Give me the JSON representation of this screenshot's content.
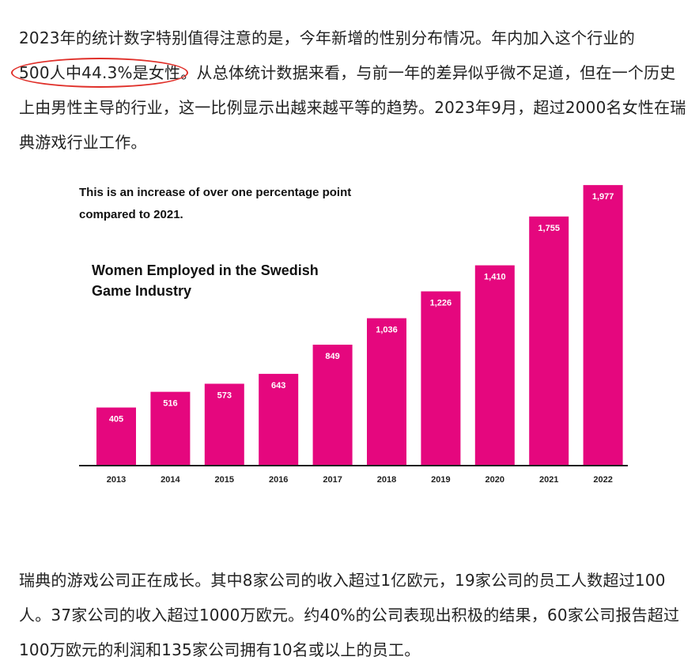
{
  "article": {
    "para1_a": "2023年的统计数字特别值得注意的是，今年新增的性别分布情况。年内加入这个行业的",
    "para1_highlight": "500人中44.3%是女性",
    "para1_b": "。从总体统计数据来看，与前一年的差异似乎微不足道，但在一个历史上由男性主导的行业，这一比例显示出越来越平等的趋势。2023年9月，超过2000名女性在瑞典游戏行业工作。",
    "para2": "瑞典的游戏公司正在成长。其中8家公司的收入超过1亿欧元，19家公司的员工人数超过100人。37家公司的收入超过1000万欧元。约40%的公司表现出积极的结果，60家公司报告超过100万欧元的利润和135家公司拥有10名或以上的员工。",
    "highlight_color": "#e0302a"
  },
  "chart_data": {
    "type": "bar",
    "caption_line1": "This is an increase of over one percentage point",
    "caption_line2": "compared to 2021.",
    "title_line1": "Women Employed in the Swedish",
    "title_line2": "Game Industry",
    "categories": [
      "2013",
      "2014",
      "2015",
      "2016",
      "2017",
      "2018",
      "2019",
      "2020",
      "2021",
      "2022"
    ],
    "values": [
      405,
      516,
      573,
      643,
      849,
      1036,
      1226,
      1410,
      1755,
      1977
    ],
    "value_labels": [
      "405",
      "516",
      "573",
      "643",
      "849",
      "1,036",
      "1,226",
      "1,410",
      "1,755",
      "1,977"
    ],
    "ylim": [
      0,
      2000
    ],
    "grid": false,
    "bar_color": "#e5077e",
    "axis_color": "#222222"
  }
}
